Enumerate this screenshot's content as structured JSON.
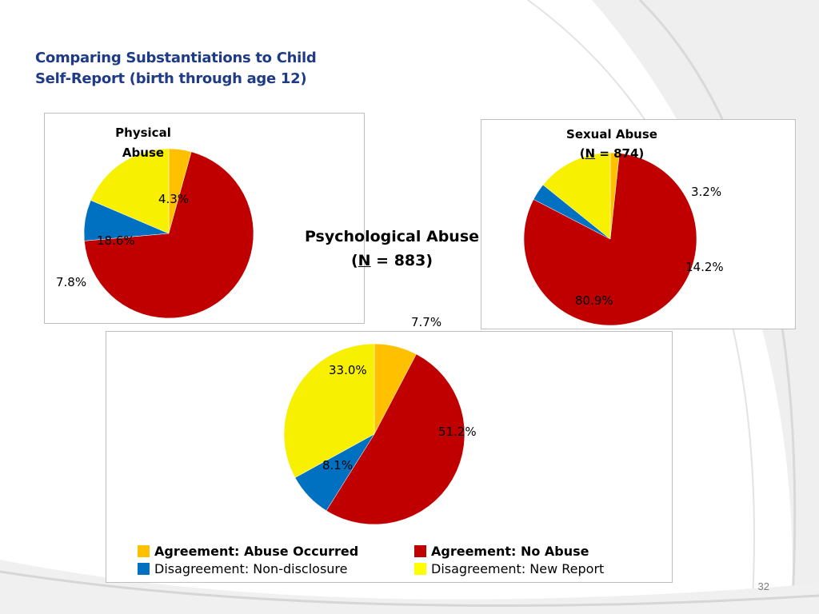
{
  "slide": {
    "title_line1": "Comparing Substantiations to Child",
    "title_line2": "Self-Report (birth through age 12)",
    "page_number": "32"
  },
  "chart_data": [
    {
      "id": "physical",
      "type": "pie",
      "title_line1": "Physical",
      "title_line2": "Abuse",
      "n_label": "",
      "categories": [
        "Agreement: Abuse Occurred",
        "Agreement: No Abuse",
        "Disagreement: Non-disclosure",
        "Disagreement: New Report"
      ],
      "values": [
        4.3,
        69.3,
        7.8,
        18.6
      ],
      "labels": [
        "4.3%",
        "",
        "7.8%",
        "18.6%"
      ]
    },
    {
      "id": "sexual",
      "type": "pie",
      "title_line1": "Sexual Abuse",
      "title_line2_pre": "(",
      "title_line2_u": "N",
      "title_line2_post": " = 874)",
      "categories": [
        "Agreement: Abuse Occurred",
        "Agreement: No Abuse",
        "Disagreement: Non-disclosure",
        "Disagreement: New Report"
      ],
      "values": [
        1.7,
        80.9,
        3.2,
        14.2
      ],
      "labels": [
        "",
        "80.9%",
        "3.2%",
        "14.2%"
      ]
    },
    {
      "id": "psychological",
      "type": "pie",
      "title_line1": "Psychological Abuse",
      "title_line2_pre": "(",
      "title_line2_u": "N",
      "title_line2_post": " = 883)",
      "categories": [
        "Agreement: Abuse Occurred",
        "Agreement: No Abuse",
        "Disagreement: Non-disclosure",
        "Disagreement: New Report"
      ],
      "values": [
        7.7,
        51.2,
        8.1,
        33.0
      ],
      "labels": [
        "7.7%",
        "51.2%",
        "8.1%",
        "33.0%"
      ]
    }
  ],
  "legend": {
    "items": [
      {
        "label": "Agreement: Abuse Occurred",
        "color": "#ffc000",
        "bold": true
      },
      {
        "label": "Agreement: No Abuse",
        "color": "#c00000",
        "bold": true
      },
      {
        "label": "Disagreement: Non-disclosure",
        "color": "#0070c0",
        "bold": false
      },
      {
        "label": "Disagreement: New Report",
        "color": "#ffff00",
        "bold": false
      }
    ]
  },
  "colors": {
    "abuse_occurred": "#ffc000",
    "no_abuse": "#c00000",
    "non_disclosure": "#0070c0",
    "new_report": "#f7f000",
    "swoosh": "#e6e6e6"
  }
}
